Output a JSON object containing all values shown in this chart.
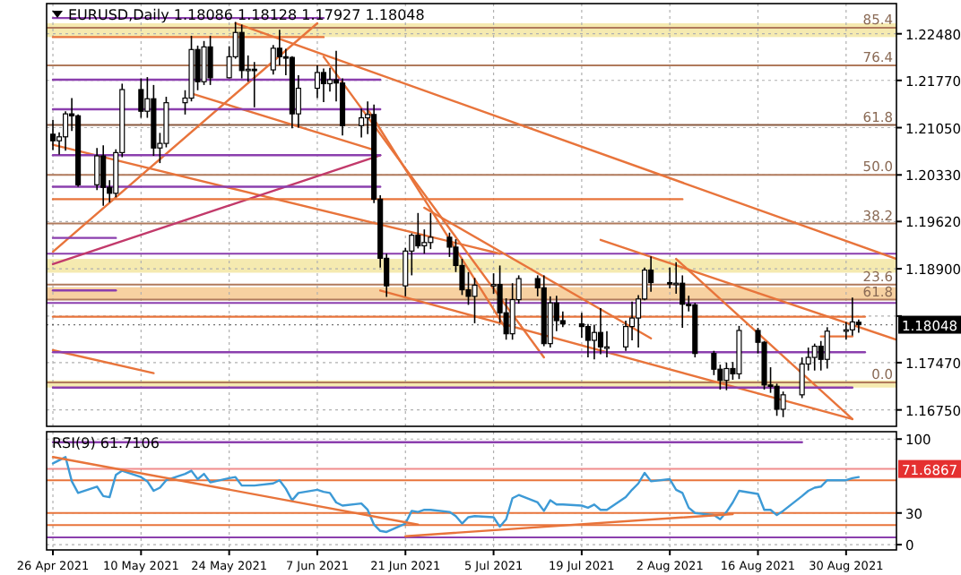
{
  "chart_data": [
    {
      "type": "candlestick",
      "title": "EURUSD,Daily  1.18086 1.18128 1.17927 1.18048",
      "x": [
        "2021-04-26",
        "2021-04-27",
        "2021-04-28",
        "2021-04-29",
        "2021-04-30",
        "2021-05-03",
        "2021-05-04",
        "2021-05-05",
        "2021-05-06",
        "2021-05-07",
        "2021-05-10",
        "2021-05-11",
        "2021-05-12",
        "2021-05-13",
        "2021-05-14",
        "2021-05-17",
        "2021-05-18",
        "2021-05-19",
        "2021-05-20",
        "2021-05-21",
        "2021-05-24",
        "2021-05-25",
        "2021-05-26",
        "2021-05-27",
        "2021-05-28",
        "2021-05-31",
        "2021-06-01",
        "2021-06-02",
        "2021-06-03",
        "2021-06-04",
        "2021-06-07",
        "2021-06-08",
        "2021-06-09",
        "2021-06-10",
        "2021-06-11",
        "2021-06-14",
        "2021-06-15",
        "2021-06-16",
        "2021-06-17",
        "2021-06-18",
        "2021-06-21",
        "2021-06-22",
        "2021-06-23",
        "2021-06-24",
        "2021-06-25",
        "2021-06-28",
        "2021-06-29",
        "2021-06-30",
        "2021-07-01",
        "2021-07-02",
        "2021-07-05",
        "2021-07-06",
        "2021-07-07",
        "2021-07-08",
        "2021-07-09",
        "2021-07-12",
        "2021-07-13",
        "2021-07-14",
        "2021-07-15",
        "2021-07-16",
        "2021-07-19",
        "2021-07-20",
        "2021-07-21",
        "2021-07-22",
        "2021-07-23",
        "2021-07-26",
        "2021-07-27",
        "2021-07-28",
        "2021-07-29",
        "2021-07-30",
        "2021-08-02",
        "2021-08-03",
        "2021-08-04",
        "2021-08-05",
        "2021-08-06",
        "2021-08-09",
        "2021-08-10",
        "2021-08-11",
        "2021-08-12",
        "2021-08-13",
        "2021-08-16",
        "2021-08-17",
        "2021-08-18",
        "2021-08-19",
        "2021-08-20",
        "2021-08-23",
        "2021-08-24",
        "2021-08-25",
        "2021-08-26",
        "2021-08-27",
        "2021-08-30",
        "2021-08-31",
        "2021-09-01"
      ],
      "ohlc": [
        [
          1.2095,
          1.2117,
          1.2071,
          1.2085
        ],
        [
          1.2085,
          1.2098,
          1.2064,
          1.2091
        ],
        [
          1.2091,
          1.213,
          1.207,
          1.2126
        ],
        [
          1.2126,
          1.215,
          1.21,
          1.2123
        ],
        [
          1.2123,
          1.2125,
          1.2015,
          1.2018
        ],
        [
          1.2018,
          1.2074,
          1.201,
          1.2062
        ],
        [
          1.2062,
          1.2078,
          1.1986,
          1.2014
        ],
        [
          1.2014,
          1.2025,
          1.1991,
          1.2005
        ],
        [
          1.2005,
          1.2072,
          1.1999,
          1.2067
        ],
        [
          1.2067,
          1.2172,
          1.206,
          1.2163
        ],
        [
          1.2163,
          1.218,
          1.212,
          1.213
        ],
        [
          1.213,
          1.2182,
          1.212,
          1.2149
        ],
        [
          1.2149,
          1.217,
          1.2062,
          1.2074
        ],
        [
          1.2074,
          1.2097,
          1.2051,
          1.2081
        ],
        [
          1.2081,
          1.2152,
          1.2075,
          1.2143
        ],
        [
          1.2143,
          1.2162,
          1.2125,
          1.215
        ],
        [
          1.215,
          1.2245,
          1.2145,
          1.2224
        ],
        [
          1.2224,
          1.223,
          1.2162,
          1.2175
        ],
        [
          1.2175,
          1.2237,
          1.217,
          1.2228
        ],
        [
          1.2228,
          1.2245,
          1.217,
          1.2181
        ],
        [
          1.2181,
          1.2229,
          1.218,
          1.2213
        ],
        [
          1.2213,
          1.2266,
          1.221,
          1.225
        ],
        [
          1.225,
          1.2262,
          1.218,
          1.2192
        ],
        [
          1.2192,
          1.2215,
          1.2175,
          1.2194
        ],
        [
          1.2194,
          1.2205,
          1.2136,
          1.2193
        ],
        [
          1.2193,
          1.2231,
          1.2186,
          1.2226
        ],
        [
          1.2226,
          1.2254,
          1.22,
          1.2213
        ],
        [
          1.2213,
          1.2225,
          1.2185,
          1.2212
        ],
        [
          1.2212,
          1.2214,
          1.2104,
          1.2126
        ],
        [
          1.2126,
          1.2185,
          1.2105,
          1.2165
        ],
        [
          1.2165,
          1.22,
          1.215,
          1.2189
        ],
        [
          1.2189,
          1.2195,
          1.2144,
          1.2172
        ],
        [
          1.2172,
          1.2196,
          1.216,
          1.2178
        ],
        [
          1.2178,
          1.2222,
          1.2145,
          1.2173
        ],
        [
          1.2173,
          1.218,
          1.2093,
          1.2108
        ],
        [
          1.2108,
          1.2134,
          1.209,
          1.212
        ],
        [
          1.212,
          1.2145,
          1.2095,
          1.2125
        ],
        [
          1.2125,
          1.214,
          1.199,
          1.1996
        ],
        [
          1.1996,
          1.2002,
          1.1892,
          1.1906
        ],
        [
          1.1906,
          1.1913,
          1.1847,
          1.1864
        ],
        [
          1.1864,
          1.1922,
          1.1848,
          1.1917
        ],
        [
          1.1917,
          1.1944,
          1.188,
          1.1941
        ],
        [
          1.1941,
          1.1975,
          1.1921,
          1.1925
        ],
        [
          1.1925,
          1.195,
          1.1913,
          1.193
        ],
        [
          1.193,
          1.1975,
          1.192,
          1.1938
        ],
        [
          1.1938,
          1.1945,
          1.1908,
          1.1923
        ],
        [
          1.1923,
          1.1935,
          1.1885,
          1.1895
        ],
        [
          1.1895,
          1.1905,
          1.185,
          1.1858
        ],
        [
          1.1858,
          1.1885,
          1.1835,
          1.1848
        ],
        [
          1.1848,
          1.1876,
          1.1807,
          1.1865
        ],
        [
          1.1865,
          1.1883,
          1.1852,
          1.1866
        ],
        [
          1.1866,
          1.1895,
          1.1808,
          1.1823
        ],
        [
          1.1823,
          1.1845,
          1.1782,
          1.1791
        ],
        [
          1.1791,
          1.1868,
          1.1782,
          1.1843
        ],
        [
          1.1843,
          1.188,
          1.1837,
          1.1875
        ],
        [
          1.1875,
          1.188,
          1.1848,
          1.1861
        ],
        [
          1.1861,
          1.188,
          1.1772,
          1.1776
        ],
        [
          1.1776,
          1.1848,
          1.177,
          1.1838
        ],
        [
          1.1838,
          1.1849,
          1.1795,
          1.1811
        ],
        [
          1.1811,
          1.1825,
          1.1801,
          1.1806
        ],
        [
          1.1806,
          1.1823,
          1.1785,
          1.1802
        ],
        [
          1.1802,
          1.1806,
          1.1755,
          1.1781
        ],
        [
          1.1781,
          1.1805,
          1.1752,
          1.1793
        ],
        [
          1.1793,
          1.183,
          1.176,
          1.1771
        ],
        [
          1.1771,
          1.1795,
          1.1755,
          1.1771
        ],
        [
          1.1771,
          1.1811,
          1.1765,
          1.1802
        ],
        [
          1.1802,
          1.184,
          1.1781,
          1.1815
        ],
        [
          1.1815,
          1.185,
          1.177,
          1.1844
        ],
        [
          1.1844,
          1.1892,
          1.1842,
          1.1888
        ],
        [
          1.1888,
          1.1909,
          1.1855,
          1.1869
        ],
        [
          1.1869,
          1.1892,
          1.186,
          1.1868
        ],
        [
          1.1868,
          1.19,
          1.1852,
          1.1868
        ],
        [
          1.1868,
          1.188,
          1.18,
          1.1836
        ],
        [
          1.1836,
          1.1849,
          1.1825,
          1.1835
        ],
        [
          1.1835,
          1.1838,
          1.1755,
          1.1761
        ],
        [
          1.1761,
          1.1765,
          1.1728,
          1.1737
        ],
        [
          1.1737,
          1.1744,
          1.1706,
          1.172
        ],
        [
          1.172,
          1.1747,
          1.1705,
          1.1738
        ],
        [
          1.1738,
          1.1748,
          1.1721,
          1.173
        ],
        [
          1.173,
          1.1803,
          1.1722,
          1.1796
        ],
        [
          1.1796,
          1.18,
          1.1761,
          1.1778
        ],
        [
          1.1778,
          1.178,
          1.1706,
          1.1713
        ],
        [
          1.1713,
          1.174,
          1.1701,
          1.1711
        ],
        [
          1.1711,
          1.1715,
          1.1666,
          1.1676
        ],
        [
          1.1676,
          1.1703,
          1.1664,
          1.1698
        ],
        [
          1.1698,
          1.1755,
          1.1693,
          1.1745
        ],
        [
          1.1745,
          1.177,
          1.1735,
          1.1755
        ],
        [
          1.1755,
          1.1776,
          1.1735,
          1.1772
        ],
        [
          1.1772,
          1.178,
          1.1735,
          1.1752
        ],
        [
          1.1752,
          1.1801,
          1.1738,
          1.1795
        ],
        [
          1.1795,
          1.1809,
          1.1782,
          1.1797
        ],
        [
          1.1797,
          1.1846,
          1.1788,
          1.1809
        ],
        [
          1.18086,
          1.18128,
          1.17927,
          1.18048
        ]
      ],
      "series": [
        {
          "type": "line",
          "color": "#e8743b",
          "x": [
            "2021-04-26",
            "2021-06-07"
          ],
          "values": [
            1.1916,
            1.2264
          ]
        },
        {
          "type": "line",
          "color": "#e8743b",
          "x": [
            "2021-05-25",
            "2021-09-07"
          ],
          "values": [
            1.2264,
            1.1905
          ]
        },
        {
          "type": "line",
          "color": "#e8743b",
          "x": [
            "2021-04-26",
            "2021-07-06"
          ],
          "values": [
            1.2079,
            1.1913
          ]
        },
        {
          "type": "line",
          "color": "#c23a6b",
          "x": [
            "2021-04-26",
            "2021-06-17"
          ],
          "values": [
            1.1897,
            1.2063
          ]
        },
        {
          "type": "line",
          "color": "#e8743b",
          "x": [
            "2021-05-18",
            "2021-06-16"
          ],
          "values": [
            1.2157,
            1.2071
          ]
        },
        {
          "type": "line",
          "color": "#e8743b",
          "x": [
            "2021-06-08",
            "2021-07-13"
          ],
          "values": [
            1.2213,
            1.1755
          ]
        },
        {
          "type": "line",
          "color": "#e8743b",
          "x": [
            "2021-06-15",
            "2021-07-07"
          ],
          "values": [
            1.2133,
            1.1798
          ]
        },
        {
          "type": "line",
          "color": "#e8743b",
          "x": [
            "2021-06-17",
            "2021-08-31"
          ],
          "values": [
            1.1857,
            1.1661
          ]
        },
        {
          "type": "line",
          "color": "#e8743b",
          "x": [
            "2021-06-24",
            "2021-07-30"
          ],
          "values": [
            1.1983,
            1.1784
          ]
        },
        {
          "type": "line",
          "color": "#e8743b",
          "x": [
            "2021-07-22",
            "2021-09-07"
          ],
          "values": [
            1.1934,
            1.1782
          ]
        },
        {
          "type": "line",
          "color": "#e8743b",
          "x": [
            "2021-08-03",
            "2021-08-31"
          ],
          "values": [
            1.1905,
            1.1661
          ]
        },
        {
          "type": "line",
          "color": "#e8743b",
          "x": [
            "2021-04-26",
            "2021-05-12"
          ],
          "values": [
            1.1766,
            1.1731
          ]
        },
        {
          "type": "line",
          "color": "#8b3fae",
          "x": [
            "2021-04-26",
            "2021-06-08"
          ],
          "values": [
            1.2272,
            1.2272
          ]
        },
        {
          "type": "line",
          "color": "#e8743b",
          "x": [
            "2021-04-26",
            "2021-06-08"
          ],
          "values": [
            1.2243,
            1.2243
          ]
        },
        {
          "type": "line",
          "color": "#8b3fae",
          "x": [
            "2021-04-26",
            "2021-06-17"
          ],
          "values": [
            1.2178,
            1.2178
          ]
        },
        {
          "type": "line",
          "color": "#8b3fae",
          "x": [
            "2021-04-26",
            "2021-06-17"
          ],
          "values": [
            1.2133,
            1.2133
          ]
        },
        {
          "type": "line",
          "color": "#8b3fae",
          "x": [
            "2021-04-26",
            "2021-06-17"
          ],
          "values": [
            1.2063,
            1.2063
          ]
        },
        {
          "type": "line",
          "color": "#8b3fae",
          "x": [
            "2021-04-26",
            "2021-06-17"
          ],
          "values": [
            1.2015,
            1.2015
          ]
        },
        {
          "type": "line",
          "color": "#e8743b",
          "x": [
            "2021-04-26",
            "2021-08-04"
          ],
          "values": [
            1.1996,
            1.1996
          ]
        },
        {
          "type": "line",
          "color": "#8b3fae",
          "x": [
            "2021-04-26",
            "2021-05-06"
          ],
          "values": [
            1.1937,
            1.1937
          ]
        },
        {
          "type": "line",
          "color": "#8b3fae",
          "x": [
            "2021-04-26",
            "2021-05-06"
          ],
          "values": [
            1.1857,
            1.1857
          ]
        },
        {
          "type": "line",
          "color": "#e8743b",
          "x": [
            "2021-04-26",
            "2021-09-02"
          ],
          "values": [
            1.1817,
            1.1817
          ]
        },
        {
          "type": "line",
          "color": "#8b3fae",
          "x": [
            "2021-04-26",
            "2021-09-02"
          ],
          "values": [
            1.1763,
            1.1763
          ]
        },
        {
          "type": "line",
          "color": "#8b3fae",
          "x": [
            "2021-04-26",
            "2021-08-31"
          ],
          "values": [
            1.1709,
            1.1709
          ]
        },
        {
          "type": "line",
          "color": "#e8743b",
          "x": [
            "2021-08-26",
            "2021-08-31"
          ],
          "values": [
            1.1787,
            1.1787
          ]
        }
      ],
      "bands": [
        {
          "axis": "y",
          "from": 1.2243,
          "to": 1.2264,
          "color": "#f3e6a2"
        },
        {
          "axis": "y",
          "from": 1.1884,
          "to": 1.1905,
          "color": "#f3e6a2"
        },
        {
          "axis": "y",
          "from": 1.1843,
          "to": 1.1862,
          "color": "#f6c990"
        },
        {
          "axis": "y",
          "from": 1.1709,
          "to": 1.172,
          "color": "#f3e6a2"
        }
      ],
      "ref_lines": [
        {
          "axis": "y",
          "value": 1.2257,
          "color": "#b07a5c"
        },
        {
          "axis": "y",
          "value": 1.22,
          "color": "#b07a5c"
        },
        {
          "axis": "y",
          "value": 1.2109,
          "color": "#8a5a40"
        },
        {
          "axis": "y",
          "value": 1.2033,
          "color": "#b07a5c"
        },
        {
          "axis": "y",
          "value": 1.1959,
          "color": "#b07a5c"
        },
        {
          "axis": "y",
          "value": 1.1866,
          "color": "#b07a5c"
        },
        {
          "axis": "y",
          "value": 1.1843,
          "color": "#b07a5c"
        },
        {
          "axis": "y",
          "value": 1.1717,
          "color": "#b07a5c"
        },
        {
          "axis": "y",
          "value": 1.1913,
          "color": "#8b3fae"
        },
        {
          "axis": "y",
          "value": 1.1838,
          "color": "#8b3fae"
        },
        {
          "axis": "y",
          "value": 1.18048,
          "label": "1.18048",
          "color": "#000000",
          "line_style": "dotted"
        }
      ],
      "annotations": [
        {
          "text": "85.4",
          "x": "2021-09-07",
          "y": 1.2257
        },
        {
          "text": "76.4",
          "x": "2021-09-07",
          "y": 1.22
        },
        {
          "text": "61.8",
          "x": "2021-09-07",
          "y": 1.2109
        },
        {
          "text": "50.0",
          "x": "2021-09-07",
          "y": 1.2033
        },
        {
          "text": "38.2",
          "x": "2021-09-07",
          "y": 1.1959
        },
        {
          "text": "23.6",
          "x": "2021-09-07",
          "y": 1.1866
        },
        {
          "text": "61.8",
          "x": "2021-09-07",
          "y": 1.1843
        },
        {
          "text": "0.0",
          "x": "2021-09-07",
          "y": 1.1717
        }
      ],
      "xlim": [
        "2021-04-25",
        "2021-09-07"
      ],
      "xticks": [
        {
          "value": "2021-04-26",
          "label": null
        },
        {
          "value": "2021-05-10",
          "label": null
        },
        {
          "value": "2021-05-24",
          "label": null
        },
        {
          "value": "2021-06-07",
          "label": null
        },
        {
          "value": "2021-06-21",
          "label": null
        },
        {
          "value": "2021-07-05",
          "label": null
        },
        {
          "value": "2021-07-19",
          "label": null
        },
        {
          "value": "2021-08-02",
          "label": null
        },
        {
          "value": "2021-08-16",
          "label": null
        },
        {
          "value": "2021-08-30",
          "label": null
        }
      ],
      "ylim": [
        1.165,
        1.2294
      ],
      "yticks": [
        {
          "value": 1.2248,
          "label": "1.22480"
        },
        {
          "value": 1.2177,
          "label": "1.21770"
        },
        {
          "value": 1.2105,
          "label": "1.21050"
        },
        {
          "value": 1.2033,
          "label": "1.20330"
        },
        {
          "value": 1.1962,
          "label": "1.19620"
        },
        {
          "value": 1.189,
          "label": "1.18900"
        },
        {
          "value": 1.1818,
          "label": null
        },
        {
          "value": 1.1747,
          "label": "1.17470"
        },
        {
          "value": 1.1675,
          "label": "1.16750"
        }
      ],
      "grid": true,
      "tick_labels": "y"
    },
    {
      "type": "line",
      "title": "RSI(9) 61.7106",
      "x": [
        "2021-04-26",
        "2021-04-27",
        "2021-04-28",
        "2021-04-29",
        "2021-04-30",
        "2021-05-03",
        "2021-05-04",
        "2021-05-05",
        "2021-05-06",
        "2021-05-07",
        "2021-05-10",
        "2021-05-11",
        "2021-05-12",
        "2021-05-13",
        "2021-05-14",
        "2021-05-17",
        "2021-05-18",
        "2021-05-19",
        "2021-05-20",
        "2021-05-21",
        "2021-05-24",
        "2021-05-25",
        "2021-05-26",
        "2021-05-27",
        "2021-05-28",
        "2021-05-31",
        "2021-06-01",
        "2021-06-02",
        "2021-06-03",
        "2021-06-04",
        "2021-06-07",
        "2021-06-08",
        "2021-06-09",
        "2021-06-10",
        "2021-06-11",
        "2021-06-14",
        "2021-06-15",
        "2021-06-16",
        "2021-06-17",
        "2021-06-18",
        "2021-06-21",
        "2021-06-22",
        "2021-06-23",
        "2021-06-24",
        "2021-06-25",
        "2021-06-28",
        "2021-06-29",
        "2021-06-30",
        "2021-07-01",
        "2021-07-02",
        "2021-07-05",
        "2021-07-06",
        "2021-07-07",
        "2021-07-08",
        "2021-07-09",
        "2021-07-12",
        "2021-07-13",
        "2021-07-14",
        "2021-07-15",
        "2021-07-16",
        "2021-07-19",
        "2021-07-20",
        "2021-07-21",
        "2021-07-22",
        "2021-07-23",
        "2021-07-26",
        "2021-07-27",
        "2021-07-28",
        "2021-07-29",
        "2021-07-30",
        "2021-08-02",
        "2021-08-03",
        "2021-08-04",
        "2021-08-05",
        "2021-08-06",
        "2021-08-09",
        "2021-08-10",
        "2021-08-11",
        "2021-08-12",
        "2021-08-13",
        "2021-08-16",
        "2021-08-17",
        "2021-08-18",
        "2021-08-19",
        "2021-08-20",
        "2021-08-23",
        "2021-08-24",
        "2021-08-25",
        "2021-08-26",
        "2021-08-27",
        "2021-08-30",
        "2021-08-31",
        "2021-09-01"
      ],
      "series": [
        {
          "color": "#3d9ad6",
          "values": [
            77,
            80,
            83,
            60,
            49,
            55,
            46,
            45,
            66,
            70,
            64,
            60,
            51,
            54,
            61,
            67,
            70,
            62,
            67,
            59,
            63,
            64,
            56,
            56,
            56,
            58,
            61,
            53,
            42,
            49,
            52,
            50,
            49,
            40,
            37,
            39,
            33,
            19,
            13,
            12,
            20,
            32,
            31,
            33,
            33,
            31,
            27,
            20,
            26,
            27,
            26,
            17,
            24,
            44,
            47,
            40,
            32,
            42,
            38,
            38,
            37,
            35,
            38,
            33,
            33,
            45,
            52,
            58,
            68,
            60,
            62,
            52,
            49,
            35,
            30,
            28,
            24,
            31,
            40,
            51,
            48,
            33,
            33,
            28,
            32,
            46,
            51,
            54,
            55,
            61,
            61,
            63,
            64
          ]
        },
        {
          "color": "#e8743b",
          "x": [
            "2021-04-26",
            "2021-06-23"
          ],
          "values": [
            83,
            19
          ]
        },
        {
          "color": "#e8743b",
          "x": [
            "2021-06-21",
            "2021-08-12"
          ],
          "values": [
            8,
            29
          ]
        },
        {
          "color": "#8b3fae",
          "x": [
            "2021-04-26",
            "2021-08-23"
          ],
          "values": [
            97,
            97
          ]
        }
      ],
      "ref_lines": [
        {
          "axis": "y",
          "value": 71.6867,
          "label": "71.6867",
          "color": "#e53030"
        },
        {
          "axis": "y",
          "value": 61,
          "color": "#e8743b"
        },
        {
          "axis": "y",
          "value": 30,
          "color": "#e8743b"
        },
        {
          "axis": "y",
          "value": 18.6,
          "color": "#e8743b"
        },
        {
          "axis": "y",
          "value": 6.8,
          "color": "#8b3fae"
        }
      ],
      "xlim": [
        "2021-04-25",
        "2021-09-07"
      ],
      "xticks": [
        {
          "value": "2021-04-26",
          "label": "26 Apr 2021"
        },
        {
          "value": "2021-05-10",
          "label": "10 May 2021"
        },
        {
          "value": "2021-05-24",
          "label": "24 May 2021"
        },
        {
          "value": "2021-06-07",
          "label": "7 Jun 2021"
        },
        {
          "value": "2021-06-21",
          "label": "21 Jun 2021"
        },
        {
          "value": "2021-07-05",
          "label": "5 Jul 2021"
        },
        {
          "value": "2021-07-19",
          "label": "19 Jul 2021"
        },
        {
          "value": "2021-08-02",
          "label": "2 Aug 2021"
        },
        {
          "value": "2021-08-16",
          "label": "16 Aug 2021"
        },
        {
          "value": "2021-08-30",
          "label": "30 Aug 2021"
        }
      ],
      "ylim": [
        -5,
        107
      ],
      "yticks": [
        0,
        30,
        100
      ],
      "grid": true
    }
  ]
}
